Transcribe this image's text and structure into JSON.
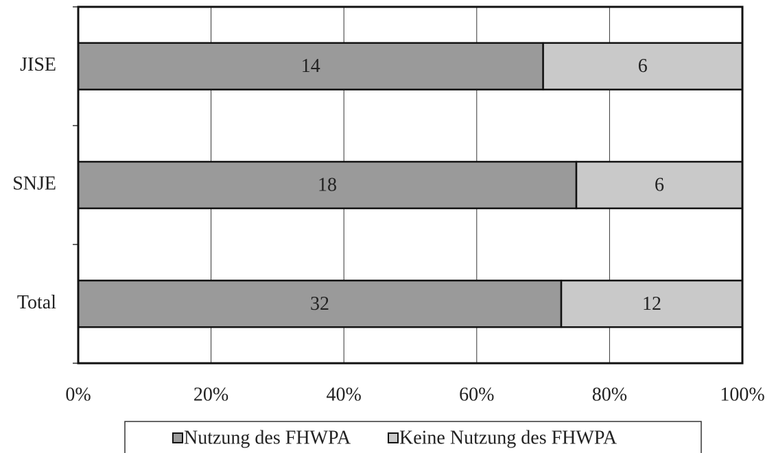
{
  "chart_data": {
    "type": "bar",
    "orientation": "horizontal",
    "stack": "percent",
    "categories": [
      "JISE",
      "SNJE",
      "Total"
    ],
    "series": [
      {
        "name": "Nutzung des FHWPA",
        "color": "#9a9a9a",
        "values": [
          14,
          18,
          32
        ]
      },
      {
        "name": "Keine Nutzung des FHWPA",
        "color": "#c9c9c9",
        "values": [
          6,
          6,
          12
        ]
      }
    ],
    "xlim": [
      0,
      100
    ],
    "xticks": [
      {
        "value": 0,
        "label": "0%"
      },
      {
        "value": 20,
        "label": "20%"
      },
      {
        "value": 40,
        "label": "40%"
      },
      {
        "value": 60,
        "label": "60%"
      },
      {
        "value": 80,
        "label": "80%"
      },
      {
        "value": 100,
        "label": "100%"
      }
    ],
    "grid": true,
    "legend": "bottom"
  }
}
